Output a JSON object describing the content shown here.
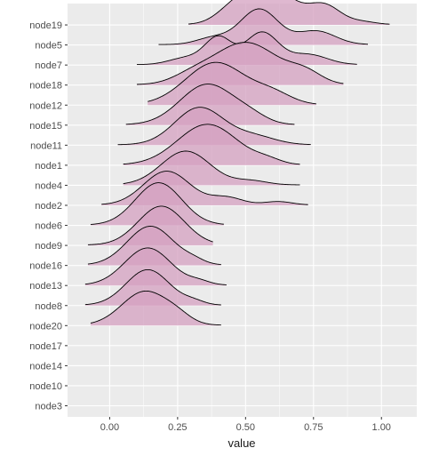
{
  "chart_data": {
    "type": "area",
    "subtype": "ridgeline",
    "xlabel": "value",
    "ylabel": "",
    "xlim": [
      -0.155,
      1.13
    ],
    "xticks": [
      0.0,
      0.25,
      0.5,
      0.75,
      1.0
    ],
    "xtick_labels": [
      "0.00",
      "0.25",
      "0.50",
      "0.75",
      "1.00"
    ],
    "fill_color": "#d4a0c0",
    "fill_opacity": 0.75,
    "line_color": "#000000",
    "panel_background": "#ebebeb",
    "grid_color": "#ffffff",
    "grid": true,
    "categories": [
      "node3",
      "node10",
      "node14",
      "node17",
      "node20",
      "node8",
      "node13",
      "node16",
      "node9",
      "node6",
      "node2",
      "node4",
      "node1",
      "node11",
      "node15",
      "node12",
      "node18",
      "node7",
      "node5",
      "node19"
    ],
    "series": [
      {
        "name": "node3",
        "x_range": null,
        "peaks": []
      },
      {
        "name": "node10",
        "x_range": null,
        "peaks": []
      },
      {
        "name": "node14",
        "x_range": null,
        "peaks": []
      },
      {
        "name": "node17",
        "x_range": null,
        "peaks": []
      },
      {
        "name": "node20",
        "x_range": [
          -0.07,
          0.41
        ],
        "peaks": [
          {
            "x": 0.13,
            "h": 1.0,
            "w": 0.085
          },
          {
            "x": 0.25,
            "h": 0.18,
            "w": 0.05
          }
        ]
      },
      {
        "name": "node8",
        "x_range": [
          -0.09,
          0.41
        ],
        "peaks": [
          {
            "x": 0.14,
            "h": 1.05,
            "w": 0.08
          },
          {
            "x": 0.31,
            "h": 0.1,
            "w": 0.04
          }
        ]
      },
      {
        "name": "node13",
        "x_range": [
          -0.09,
          0.43
        ],
        "peaks": [
          {
            "x": 0.14,
            "h": 1.1,
            "w": 0.085
          },
          {
            "x": 0.33,
            "h": 0.1,
            "w": 0.04
          }
        ]
      },
      {
        "name": "node16",
        "x_range": [
          -0.08,
          0.41
        ],
        "peaks": [
          {
            "x": 0.15,
            "h": 1.15,
            "w": 0.085
          },
          {
            "x": 0.31,
            "h": 0.1,
            "w": 0.04
          }
        ]
      },
      {
        "name": "node9",
        "x_range": [
          -0.08,
          0.38
        ],
        "peaks": [
          {
            "x": 0.19,
            "h": 1.15,
            "w": 0.085
          }
        ]
      },
      {
        "name": "node6",
        "x_range": [
          -0.07,
          0.42
        ],
        "peaks": [
          {
            "x": 0.18,
            "h": 1.25,
            "w": 0.085
          }
        ]
      },
      {
        "name": "node2",
        "x_range": [
          -0.03,
          0.73
        ],
        "peaks": [
          {
            "x": 0.21,
            "h": 1.0,
            "w": 0.085
          },
          {
            "x": 0.43,
            "h": 0.22,
            "w": 0.06
          },
          {
            "x": 0.62,
            "h": 0.1,
            "w": 0.05
          }
        ]
      },
      {
        "name": "node4",
        "x_range": [
          0.05,
          0.7
        ],
        "peaks": [
          {
            "x": 0.28,
            "h": 1.0,
            "w": 0.09
          },
          {
            "x": 0.52,
            "h": 0.12,
            "w": 0.06
          }
        ]
      },
      {
        "name": "node1",
        "x_range": [
          0.05,
          0.7
        ],
        "peaks": [
          {
            "x": 0.36,
            "h": 1.2,
            "w": 0.11
          },
          {
            "x": 0.58,
            "h": 0.12,
            "w": 0.05
          }
        ]
      },
      {
        "name": "node11",
        "x_range": [
          0.03,
          0.74
        ],
        "peaks": [
          {
            "x": 0.33,
            "h": 1.1,
            "w": 0.09
          },
          {
            "x": 0.53,
            "h": 0.25,
            "w": 0.08
          }
        ]
      },
      {
        "name": "node15",
        "x_range": [
          0.06,
          0.68
        ],
        "peaks": [
          {
            "x": 0.36,
            "h": 1.2,
            "w": 0.1
          },
          {
            "x": 0.52,
            "h": 0.18,
            "w": 0.06
          }
        ]
      },
      {
        "name": "node12",
        "x_range": [
          0.14,
          0.76
        ],
        "peaks": [
          {
            "x": 0.39,
            "h": 1.25,
            "w": 0.11
          },
          {
            "x": 0.6,
            "h": 0.3,
            "w": 0.07
          }
        ]
      },
      {
        "name": "node18",
        "x_range": [
          0.1,
          0.86
        ],
        "peaks": [
          {
            "x": 0.5,
            "h": 1.25,
            "w": 0.12
          },
          {
            "x": 0.72,
            "h": 0.3,
            "w": 0.06
          },
          {
            "x": 0.3,
            "h": 0.2,
            "w": 0.07
          }
        ]
      },
      {
        "name": "node7",
        "x_range": [
          0.1,
          0.91
        ],
        "peaks": [
          {
            "x": 0.4,
            "h": 0.8,
            "w": 0.05
          },
          {
            "x": 0.56,
            "h": 0.95,
            "w": 0.06
          },
          {
            "x": 0.73,
            "h": 0.3,
            "w": 0.07
          },
          {
            "x": 0.28,
            "h": 0.2,
            "w": 0.06
          }
        ]
      },
      {
        "name": "node5",
        "x_range": [
          0.18,
          0.95
        ],
        "peaks": [
          {
            "x": 0.55,
            "h": 1.05,
            "w": 0.07
          },
          {
            "x": 0.76,
            "h": 0.4,
            "w": 0.07
          },
          {
            "x": 0.38,
            "h": 0.2,
            "w": 0.06
          }
        ]
      },
      {
        "name": "node19",
        "x_range": [
          0.29,
          1.03
        ],
        "peaks": [
          {
            "x": 0.58,
            "h": 1.2,
            "w": 0.09
          },
          {
            "x": 0.79,
            "h": 0.55,
            "w": 0.06
          },
          {
            "x": 0.45,
            "h": 0.3,
            "w": 0.06
          },
          {
            "x": 0.93,
            "h": 0.08,
            "w": 0.05
          }
        ]
      }
    ]
  }
}
